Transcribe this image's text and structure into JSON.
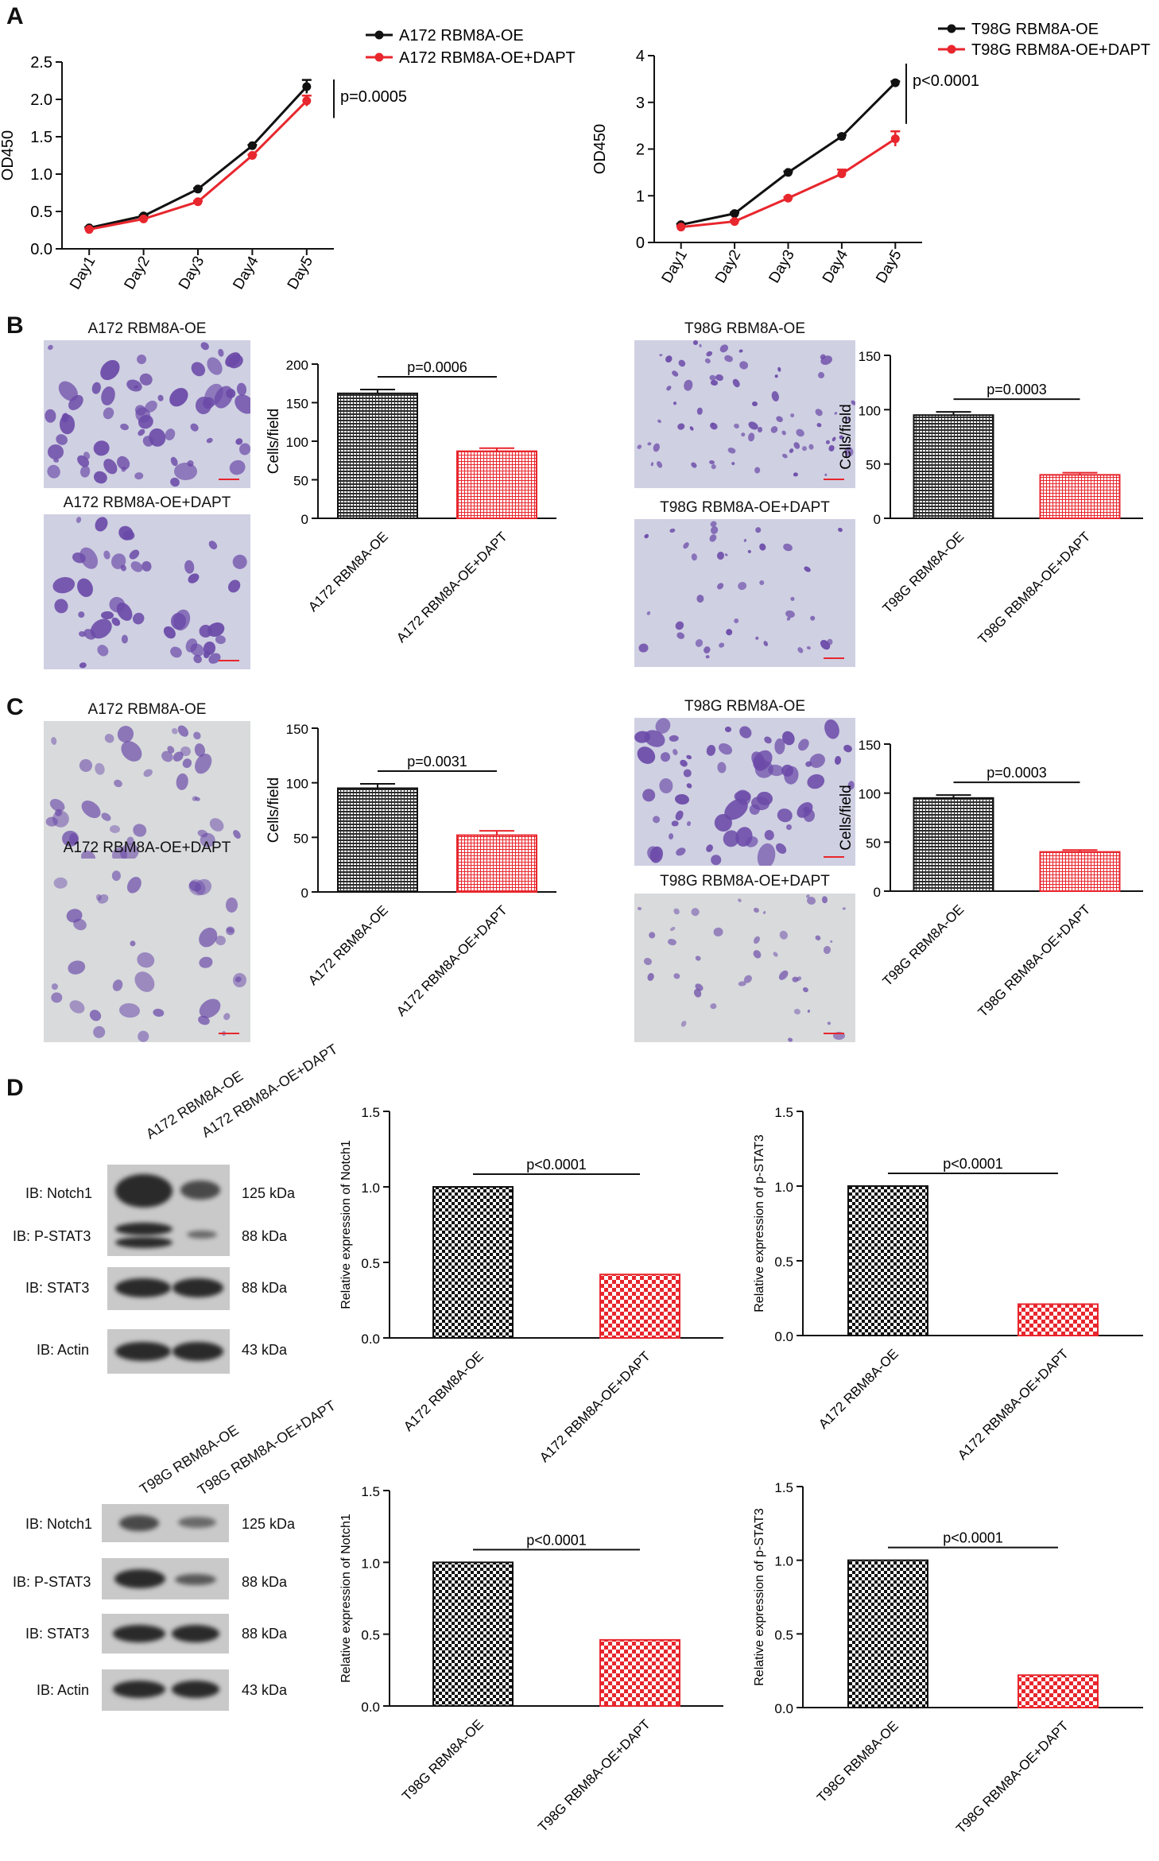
{
  "panels": {
    "A": "A",
    "B": "B",
    "C": "C",
    "D": "D"
  },
  "colors": {
    "control": "#111111",
    "dapt": "#e8262d",
    "micro_bg_b": "#cfd0e2",
    "micro_bg_c": "#d8dadc",
    "cell": "#6b4aa8"
  },
  "panel_b": {
    "img_labels": [
      "A172 RBM8A-OE",
      "A172 RBM8A-OE+DAPT",
      "T98G RBM8A-OE",
      "T98G RBM8A-OE+DAPT"
    ]
  },
  "panel_c": {
    "img_labels": [
      "A172 RBM8A-OE",
      "A172 RBM8A-OE+DAPT",
      "T98G RBM8A-OE",
      "T98G RBM8A-OE+DAPT"
    ]
  },
  "panel_d": {
    "blot1": {
      "lanes": [
        "A172 RBM8A-OE",
        "A172 RBM8A-OE+DAPT"
      ],
      "rows": [
        {
          "label": "IB: Notch1",
          "kda": "125 kDa"
        },
        {
          "label": "IB: P-STAT3",
          "kda": "88 kDa"
        },
        {
          "label": "IB: STAT3",
          "kda": "88 kDa"
        },
        {
          "label": "IB: Actin",
          "kda": "43 kDa"
        }
      ]
    },
    "blot2": {
      "lanes": [
        "T98G RBM8A-OE",
        "T98G RBM8A-OE+DAPT"
      ],
      "rows": [
        {
          "label": "IB: Notch1",
          "kda": "125 kDa"
        },
        {
          "label": "IB: P-STAT3",
          "kda": "88 kDa"
        },
        {
          "label": "IB: STAT3",
          "kda": "88 kDa"
        },
        {
          "label": "IB: Actin",
          "kda": "43 kDa"
        }
      ]
    }
  },
  "chart_data": [
    {
      "id": "A1",
      "type": "line",
      "x": [
        "Day1",
        "Day2",
        "Day3",
        "Day4",
        "Day5"
      ],
      "series": [
        {
          "name": "A172 RBM8A-OE",
          "values": [
            0.28,
            0.44,
            0.8,
            1.38,
            2.17
          ],
          "err": [
            0.01,
            0.01,
            0.01,
            0.01,
            0.09
          ]
        },
        {
          "name": "A172 RBM8A-OE+DAPT",
          "values": [
            0.26,
            0.4,
            0.63,
            1.25,
            1.98
          ],
          "err": [
            0.01,
            0.01,
            0.01,
            0.01,
            0.07
          ]
        }
      ],
      "ylabel": "OD450",
      "ylim": [
        0,
        2.5
      ],
      "yticks": [
        "0.0",
        "0.5",
        "1.0",
        "1.5",
        "2.0",
        "2.5"
      ],
      "pvalue": "p=0.0005"
    },
    {
      "id": "A2",
      "type": "line",
      "x": [
        "Day1",
        "Day2",
        "Day3",
        "Day4",
        "Day5"
      ],
      "series": [
        {
          "name": "T98G RBM8A-OE",
          "values": [
            0.38,
            0.62,
            1.5,
            2.27,
            3.42
          ],
          "err": [
            0.02,
            0.02,
            0.02,
            0.03,
            0.03
          ]
        },
        {
          "name": "T98G RBM8A-OE+DAPT",
          "values": [
            0.33,
            0.45,
            0.95,
            1.47,
            2.22
          ],
          "err": [
            0.02,
            0.02,
            0.02,
            0.09,
            0.16
          ]
        }
      ],
      "ylabel": "OD450",
      "ylim": [
        0,
        4
      ],
      "yticks": [
        "0",
        "1",
        "2",
        "3",
        "4"
      ],
      "pvalue": "p<0.0001"
    },
    {
      "id": "B1",
      "type": "bar",
      "categories": [
        "A172 RBM8A-OE",
        "A172 RBM8A-OE+DAPT"
      ],
      "values": [
        162,
        87
      ],
      "err": [
        5,
        4
      ],
      "ylabel": "Cells/field",
      "ylim": [
        0,
        200
      ],
      "yticks": [
        "0",
        "50",
        "100",
        "150",
        "200"
      ],
      "pvalue": "p=0.0006"
    },
    {
      "id": "B2",
      "type": "bar",
      "categories": [
        "T98G RBM8A-OE",
        "T98G RBM8A-OE+DAPT"
      ],
      "values": [
        95,
        40
      ],
      "err": [
        3,
        2
      ],
      "ylabel": "Cells/field",
      "ylim": [
        0,
        150
      ],
      "yticks": [
        "0",
        "50",
        "100",
        "150"
      ],
      "pvalue": "p=0.0003"
    },
    {
      "id": "C1",
      "type": "bar",
      "categories": [
        "A172 RBM8A-OE",
        "A172 RBM8A-OE+DAPT"
      ],
      "values": [
        95,
        52
      ],
      "err": [
        4,
        4
      ],
      "ylabel": "Cells/field",
      "ylim": [
        0,
        150
      ],
      "yticks": [
        "0",
        "50",
        "100",
        "150"
      ],
      "pvalue": "p=0.0031"
    },
    {
      "id": "C2",
      "type": "bar",
      "categories": [
        "T98G RBM8A-OE",
        "T98G RBM8A-OE+DAPT"
      ],
      "values": [
        95,
        40
      ],
      "err": [
        3,
        2
      ],
      "ylabel": "Cells/field",
      "ylim": [
        0,
        150
      ],
      "yticks": [
        "0",
        "50",
        "100",
        "150"
      ],
      "pvalue": "p=0.0003"
    },
    {
      "id": "D1",
      "type": "bar",
      "categories": [
        "A172 RBM8A-OE",
        "A172 RBM8A-OE+DAPT"
      ],
      "values": [
        1.0,
        0.42
      ],
      "ylabel": "Relative expression of Notch1",
      "ylim": [
        0,
        1.5
      ],
      "yticks": [
        "0.0",
        "0.5",
        "1.0",
        "1.5"
      ],
      "pvalue": "p<0.0001"
    },
    {
      "id": "D2",
      "type": "bar",
      "categories": [
        "A172 RBM8A-OE",
        "A172 RBM8A-OE+DAPT"
      ],
      "values": [
        1.0,
        0.21
      ],
      "ylabel": "Relative expression of p-STAT3",
      "ylim": [
        0,
        1.5
      ],
      "yticks": [
        "0.0",
        "0.5",
        "1.0",
        "1.5"
      ],
      "pvalue": "p<0.0001"
    },
    {
      "id": "D3",
      "type": "bar",
      "categories": [
        "T98G RBM8A-OE",
        "T98G RBM8A-OE+DAPT"
      ],
      "values": [
        1.0,
        0.46
      ],
      "ylabel": "Relative expression of Notch1",
      "ylim": [
        0,
        1.5
      ],
      "yticks": [
        "0.0",
        "0.5",
        "1.0",
        "1.5"
      ],
      "pvalue": "p<0.0001"
    },
    {
      "id": "D4",
      "type": "bar",
      "categories": [
        "T98G RBM8A-OE",
        "T98G RBM8A-OE+DAPT"
      ],
      "values": [
        1.0,
        0.22
      ],
      "ylabel": "Relative expression of p-STAT3",
      "ylim": [
        0,
        1.5
      ],
      "yticks": [
        "0.0",
        "0.5",
        "1.0",
        "1.5"
      ],
      "pvalue": "p<0.0001"
    }
  ]
}
